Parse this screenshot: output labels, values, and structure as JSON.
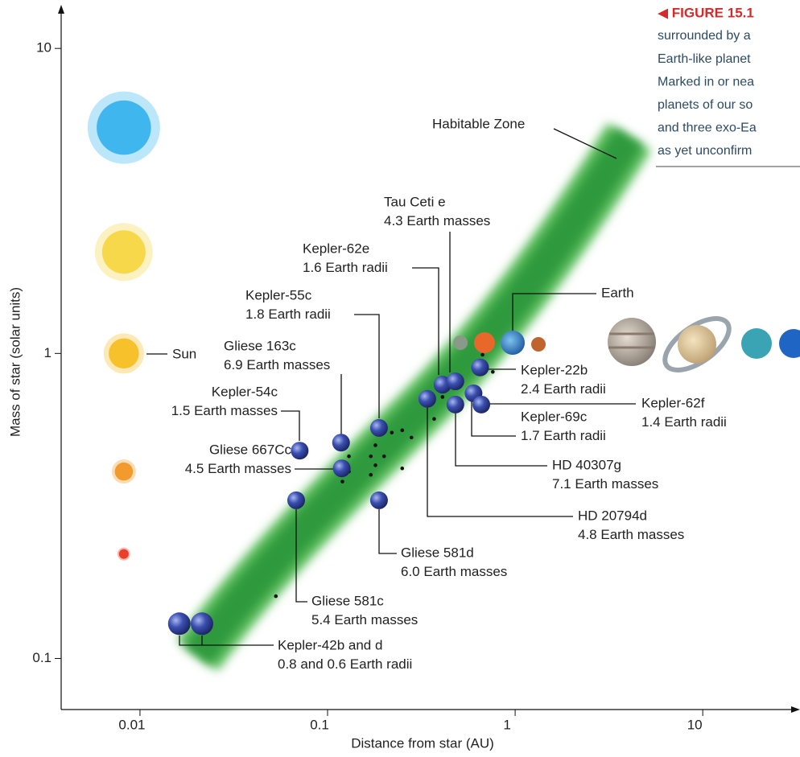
{
  "chart_data": {
    "type": "scatter",
    "xlabel": "Distance from star (AU)",
    "ylabel": "Mass of star (solar units)",
    "xlog": true,
    "ylog": true,
    "xlim": [
      0.0038,
      33
    ],
    "ylim": [
      0.068,
      13.4
    ],
    "xticks": [
      0.01,
      0.1,
      1,
      10
    ],
    "yticks": [
      0.1,
      1,
      10
    ],
    "habitable_zone_label": "Habitable Zone",
    "sun_label": "Sun",
    "earth_label": "Earth",
    "stars": {
      "x": [
        0.0082,
        0.0082,
        0.0082,
        0.0082,
        0.0082
      ],
      "y": [
        5.5,
        2.15,
        1,
        0.41,
        0.22
      ],
      "colors": [
        "#3fb6ee",
        "#f7d84a",
        "#f6c12a",
        "#f39a2c",
        "#e8402a"
      ]
    },
    "exoplanets": [
      {
        "label": [
          "Kepler-42b and d",
          "0.8 and 0.6 Earth radii"
        ],
        "x": [
          0.0162,
          0.0214
        ],
        "y": [
          0.13,
          0.13
        ]
      },
      {
        "label": [
          "Gliese 581c",
          "5.4 Earth masses"
        ],
        "x": [
          0.068
        ],
        "y": [
          0.33
        ]
      },
      {
        "label": [
          "Gliese 581d",
          "6.0 Earth masses"
        ],
        "x": [
          0.188
        ],
        "y": [
          0.33
        ]
      },
      {
        "label": [
          "Kepler-54c",
          "1.5 Earth masses"
        ],
        "x": [
          0.071
        ],
        "y": [
          0.48
        ]
      },
      {
        "label": [
          "Gliese 667Cc",
          "4.5 Earth masses"
        ],
        "x": [
          0.119
        ],
        "y": [
          0.42
        ]
      },
      {
        "label": [
          "Gliese 163c",
          "6.9 Earth masses"
        ],
        "x": [
          0.118
        ],
        "y": [
          0.51
        ]
      },
      {
        "label": [
          "Kepler-55c",
          "1.8 Earth radii"
        ],
        "x": [
          0.188
        ],
        "y": [
          0.57
        ]
      },
      {
        "label": [
          "Kepler-62e",
          "1.6 Earth radii"
        ],
        "x": [
          0.41
        ],
        "y": [
          0.79
        ]
      },
      {
        "label": [
          "Tau Ceti e",
          "4.3 Earth masses"
        ],
        "x": [
          0.48
        ],
        "y": [
          0.81
        ]
      },
      {
        "label": [
          "HD 40307g",
          "7.1 Earth masses"
        ],
        "x": [
          0.48
        ],
        "y": [
          0.68
        ]
      },
      {
        "label": [
          "HD 20794d",
          "4.8 Earth masses"
        ],
        "x": [
          0.34
        ],
        "y": [
          0.71
        ]
      },
      {
        "label": [
          "Kepler-22b",
          "2.4 Earth radii"
        ],
        "x": [
          0.65
        ],
        "y": [
          0.9
        ]
      },
      {
        "label": [
          "Kepler-69c",
          "1.7 Earth radii"
        ],
        "x": [
          0.6
        ],
        "y": [
          0.74
        ]
      },
      {
        "label": [
          "Kepler-62f",
          "1.4 Earth radii"
        ],
        "x": [
          0.66
        ],
        "y": [
          0.68
        ]
      }
    ],
    "other_exoplanets": {
      "x": [
        0.67,
        0.76,
        0.41,
        0.37,
        0.25,
        0.28,
        0.22,
        0.18,
        0.17,
        0.2,
        0.13,
        0.18,
        0.25,
        0.13,
        0.12,
        0.17,
        0.053
      ],
      "y": [
        0.99,
        0.87,
        0.72,
        0.61,
        0.56,
        0.53,
        0.55,
        0.5,
        0.46,
        0.46,
        0.46,
        0.43,
        0.42,
        0.41,
        0.38,
        0.4,
        0.16
      ]
    }
  },
  "caption": {
    "heading": "◀ FIGURE 15.1",
    "lines": [
      "surrounded by a",
      "Earth-like planet",
      "Marked in or nea",
      "planets of our so",
      "and three exo-Ea",
      "as yet unconfirm"
    ]
  }
}
